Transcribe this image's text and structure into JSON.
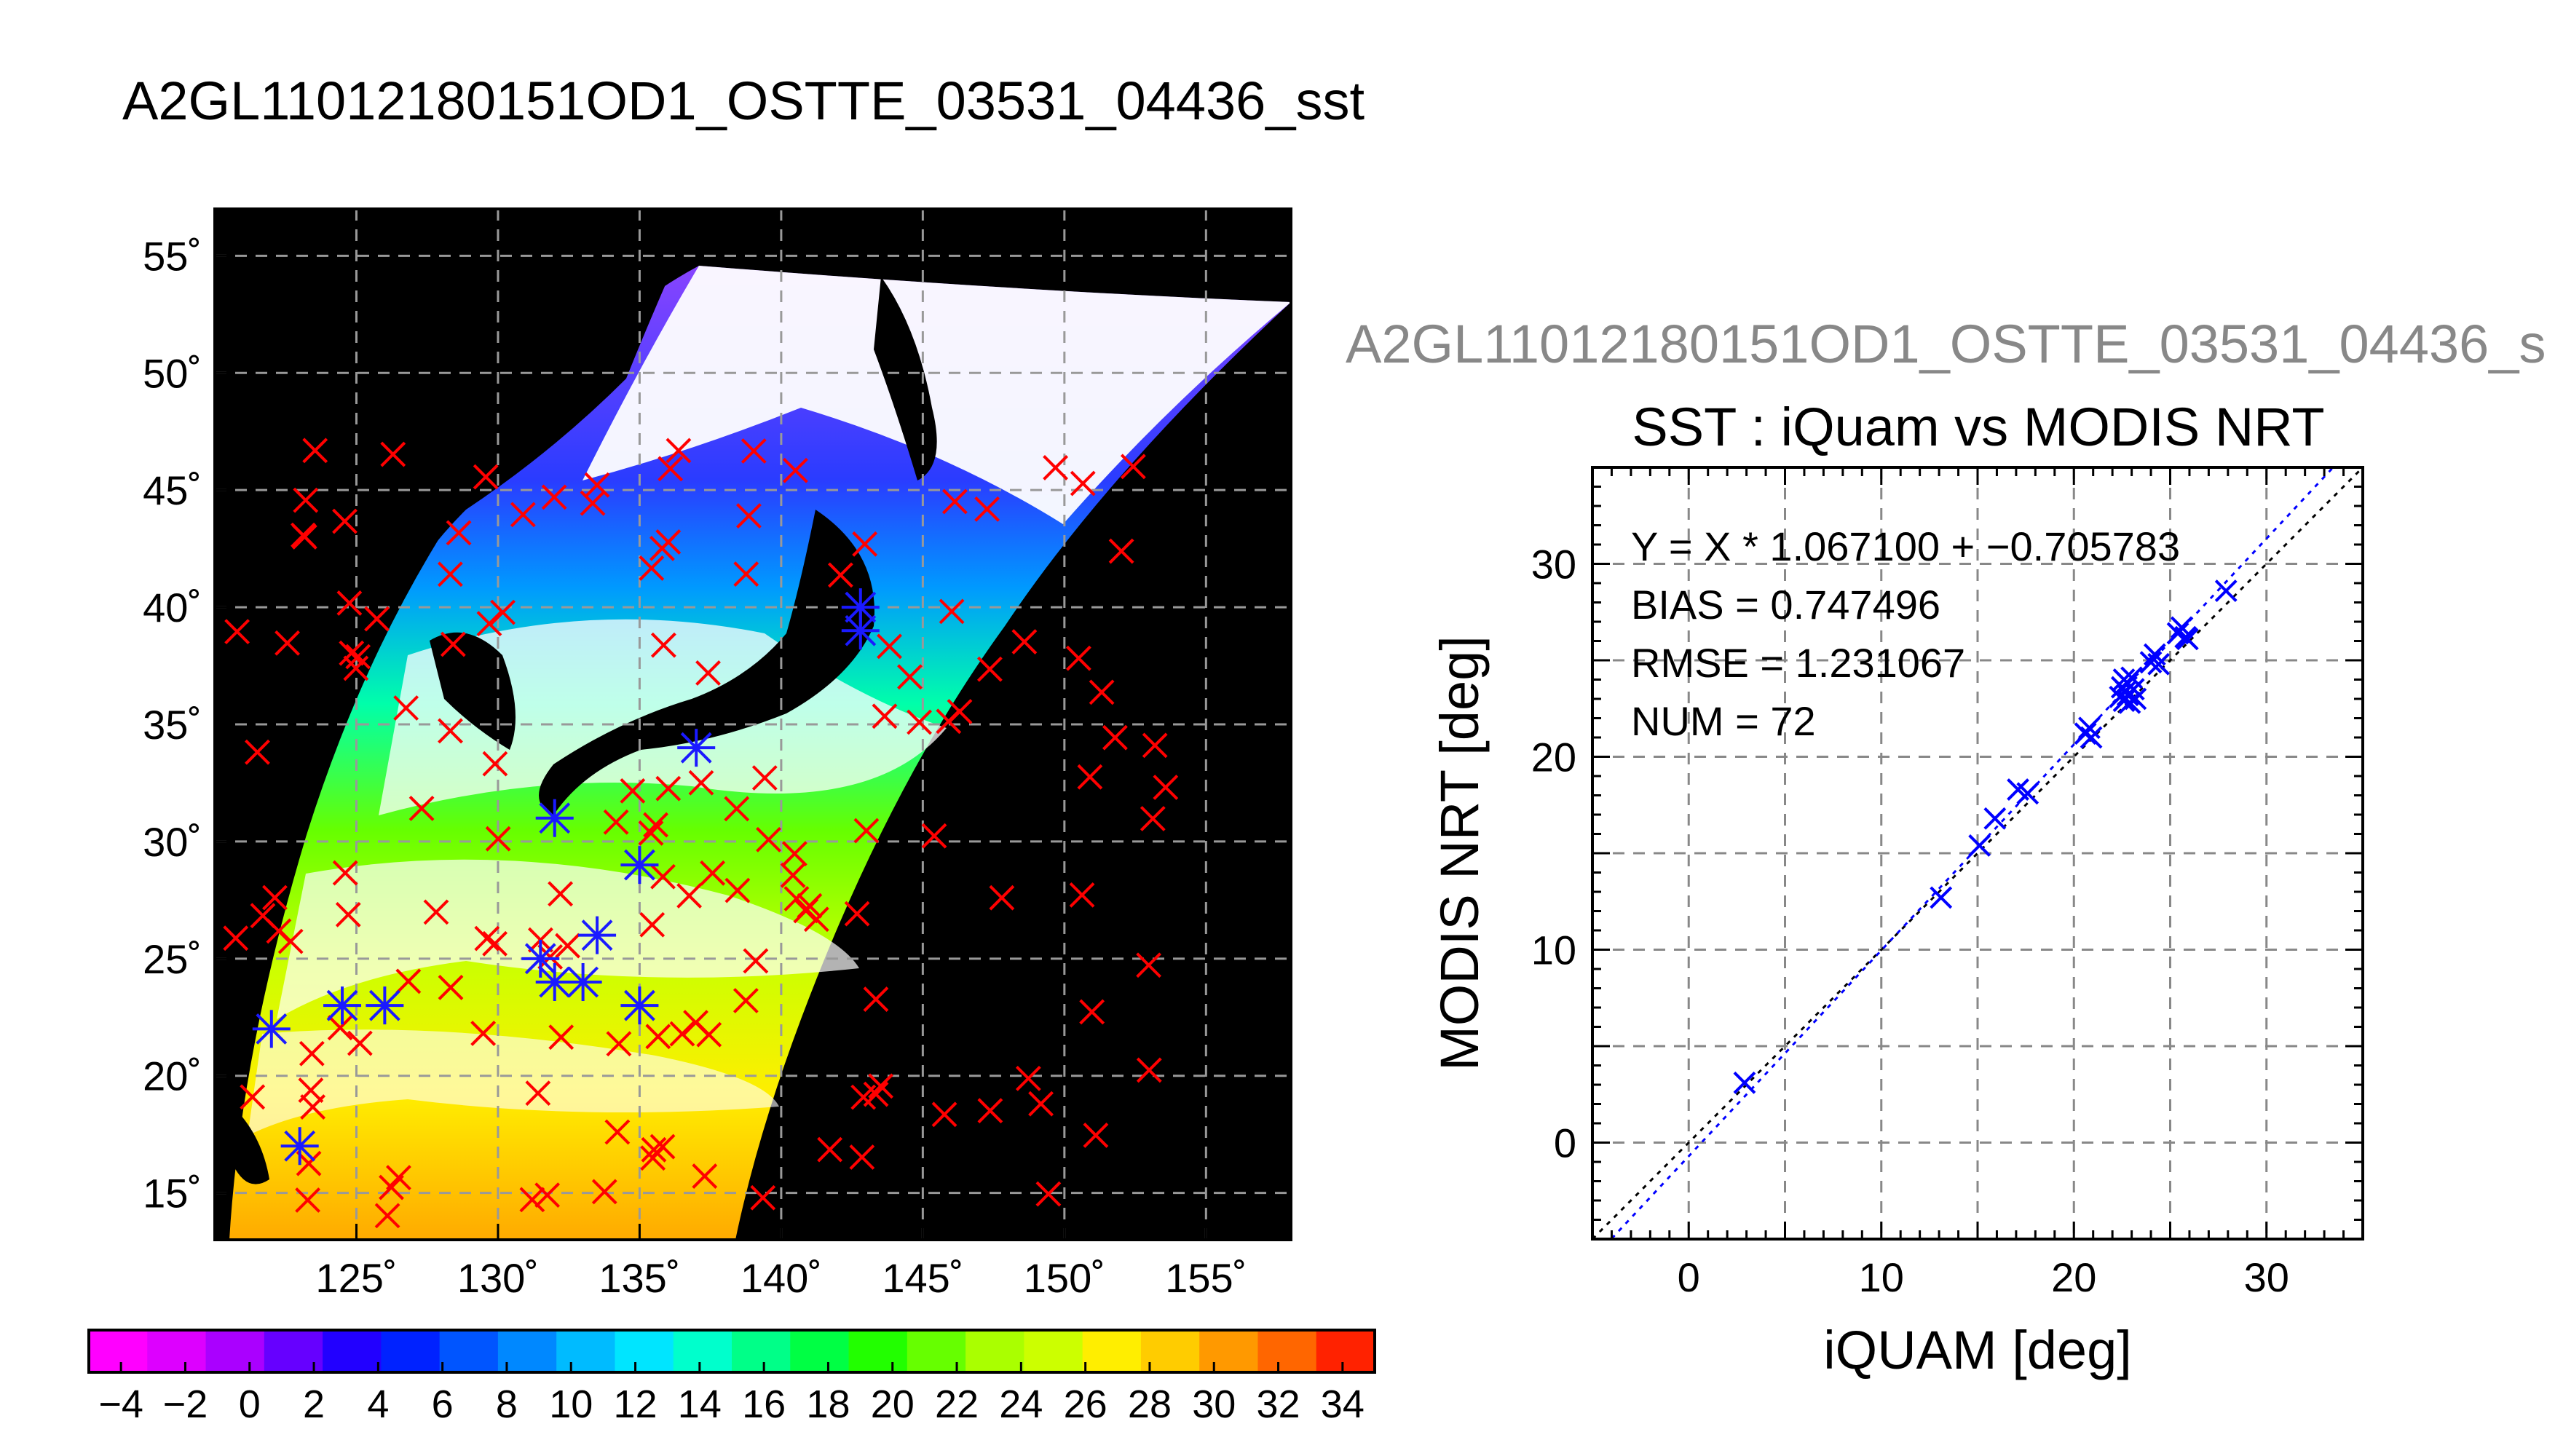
{
  "title": "A2GL11012180151OD1_OSTTE_03531_04436_sst",
  "map": {
    "lat_ticks": [
      "55˚",
      "50˚",
      "45˚",
      "40˚",
      "35˚",
      "30˚",
      "25˚",
      "20˚",
      "15˚"
    ],
    "lat_values": [
      55,
      50,
      45,
      40,
      35,
      30,
      25,
      20,
      15
    ],
    "lon_ticks": [
      "125˚",
      "130˚",
      "135˚",
      "140˚",
      "145˚",
      "150˚",
      "155˚"
    ],
    "lon_values": [
      125,
      130,
      135,
      140,
      145,
      150,
      155
    ],
    "lon_range": [
      120,
      158
    ],
    "lat_range": [
      13,
      57
    ],
    "grid": true,
    "colors": {
      "land": "#000000",
      "cloud": "#ffffff",
      "in_situ_marker": "#ff0000",
      "matched_marker": "#1a1aff"
    }
  },
  "colorbar": {
    "tick_labels": [
      "−4",
      "−2",
      "0",
      "2",
      "4",
      "6",
      "8",
      "10",
      "12",
      "14",
      "16",
      "18",
      "20",
      "22",
      "24",
      "26",
      "28",
      "30",
      "32",
      "34"
    ],
    "range": [
      -5,
      35
    ],
    "colors": [
      "#ff00ff",
      "#dd00ff",
      "#aa00ff",
      "#6600ff",
      "#2200ff",
      "#0022ff",
      "#0055ff",
      "#0088ff",
      "#00bbff",
      "#00e5ff",
      "#00ffcc",
      "#00ff88",
      "#00ff44",
      "#22ff00",
      "#66ff00",
      "#aaff00",
      "#ccff00",
      "#ffee00",
      "#ffcc00",
      "#ff9900",
      "#ff6600",
      "#ff2200"
    ]
  },
  "scatter_top_title": "A2GL11012180151OD1_OSTTE_03531_04436_s",
  "chart_data": {
    "type": "scatter",
    "title": "SST : iQuam vs MODIS NRT",
    "xlabel": "iQUAM [deg]",
    "ylabel": "MODIS NRT [deg]",
    "xlim": [
      -5,
      35
    ],
    "ylim": [
      -5,
      35
    ],
    "x_ticks": [
      0,
      10,
      20,
      30
    ],
    "y_ticks": [
      0,
      10,
      20,
      30
    ],
    "grid": true,
    "stats": {
      "equation": "Y = X * 1.067100 + −0.705783",
      "bias": "BIAS = 0.747496",
      "rmse": "RMSE = 1.231067",
      "num": "NUM = 72"
    },
    "regression": {
      "slope": 1.0671,
      "intercept": -0.705783,
      "color": "#0000ff"
    },
    "identity_line_color": "#000000",
    "marker_color": "#0000ff",
    "points": [
      [
        2.9,
        3.1
      ],
      [
        13.1,
        12.7
      ],
      [
        15.1,
        15.4
      ],
      [
        15.9,
        16.8
      ],
      [
        17.1,
        18.3
      ],
      [
        17.6,
        18.1
      ],
      [
        20.6,
        21.2
      ],
      [
        20.8,
        21.5
      ],
      [
        20.9,
        21.0
      ],
      [
        22.4,
        23.1
      ],
      [
        22.5,
        23.6
      ],
      [
        22.6,
        22.9
      ],
      [
        22.6,
        24.0
      ],
      [
        22.7,
        23.4
      ],
      [
        22.8,
        23.8
      ],
      [
        22.8,
        23.2
      ],
      [
        22.9,
        22.8
      ],
      [
        23.0,
        24.1
      ],
      [
        23.1,
        23.5
      ],
      [
        23.2,
        23.0
      ],
      [
        24.0,
        24.9
      ],
      [
        24.2,
        25.3
      ],
      [
        24.4,
        24.8
      ],
      [
        25.4,
        26.4
      ],
      [
        25.6,
        26.7
      ],
      [
        25.8,
        26.2
      ],
      [
        25.9,
        26.1
      ],
      [
        27.9,
        28.6
      ]
    ]
  }
}
